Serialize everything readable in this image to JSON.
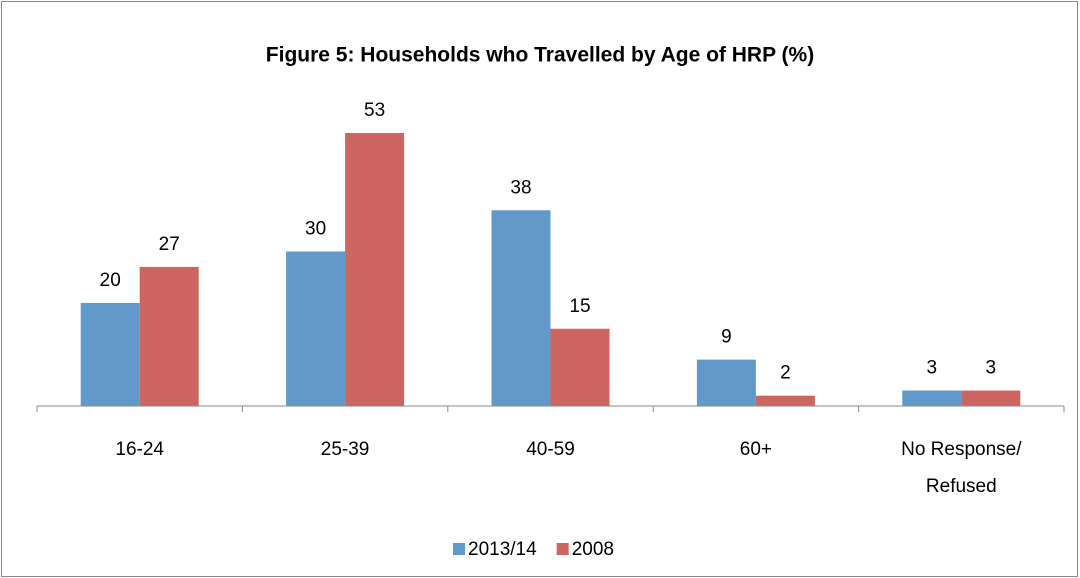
{
  "chart_data": {
    "type": "bar",
    "title": "Figure 5: Households who Travelled by Age of HRP (%)",
    "categories": [
      "16-24",
      "25-39",
      "40-59",
      "60+",
      "No Response/ Refused"
    ],
    "series": [
      {
        "name": "2013/14",
        "color": "#6199cb",
        "values": [
          20,
          30,
          38,
          9,
          3
        ]
      },
      {
        "name": "2008",
        "color": "#cd6560",
        "values": [
          27,
          53,
          15,
          2,
          3
        ]
      }
    ]
  }
}
